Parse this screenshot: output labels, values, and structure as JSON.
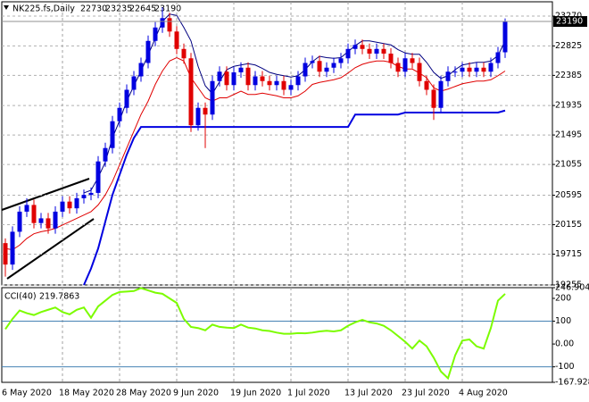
{
  "chart_data": [
    {
      "type": "candlestick",
      "title": "NK225.fs,Daily",
      "categories": [
        "6 May 2020",
        null,
        null,
        null,
        null,
        null,
        null,
        null,
        "18 May 2020",
        null,
        null,
        null,
        null,
        null,
        null,
        null,
        "28 May 2020",
        null,
        null,
        null,
        null,
        null,
        null,
        null,
        "9 Jun 2020",
        null,
        null,
        null,
        null,
        null,
        null,
        null,
        "19 Jun 2020",
        null,
        null,
        null,
        null,
        null,
        null,
        null,
        "1 Jul 2020",
        null,
        null,
        null,
        null,
        null,
        null,
        null,
        "13 Jul 2020",
        null,
        null,
        null,
        null,
        null,
        null,
        null,
        "23 Jul 2020",
        null,
        null,
        null,
        null,
        null,
        null,
        null,
        "4 Aug 2020",
        null,
        null,
        null,
        null,
        null,
        null
      ],
      "open": [
        19880,
        19560,
        20050,
        20350,
        20450,
        20180,
        20250,
        20100,
        20350,
        20500,
        20400,
        20550,
        20600,
        20630,
        21100,
        21300,
        21700,
        21900,
        22170,
        22370,
        22570,
        22900,
        23100,
        23240,
        23040,
        22780,
        22640,
        21640,
        21900,
        21800,
        22300,
        22440,
        22240,
        22430,
        22500,
        22240,
        22370,
        22300,
        22240,
        22300,
        22170,
        22240,
        22370,
        22570,
        22600,
        22440,
        22500,
        22570,
        22640,
        22780,
        22840,
        22780,
        22710,
        22780,
        22710,
        22570,
        22440,
        22640,
        22570,
        22300,
        22170,
        21900,
        22300,
        22440,
        22440,
        22500,
        22440,
        22500,
        22440,
        22570,
        22730
      ],
      "high": [
        19950,
        20130,
        20430,
        20550,
        20530,
        20330,
        20330,
        20430,
        20580,
        20580,
        20630,
        20680,
        20710,
        21180,
        21380,
        21780,
        21980,
        22250,
        22450,
        22650,
        22980,
        23180,
        23400,
        23320,
        23120,
        22860,
        22720,
        21980,
        21980,
        22380,
        22520,
        22520,
        22510,
        22580,
        22580,
        22450,
        22450,
        22380,
        22380,
        22380,
        22320,
        22450,
        22650,
        22680,
        22680,
        22580,
        22650,
        22720,
        22860,
        22920,
        22920,
        22860,
        22860,
        22860,
        22790,
        22650,
        22720,
        22720,
        22650,
        22380,
        22250,
        22380,
        22520,
        22520,
        22580,
        22580,
        22580,
        22580,
        22650,
        22810,
        23235
      ],
      "low": [
        19380,
        19480,
        19970,
        20270,
        20100,
        20100,
        20020,
        20020,
        20270,
        20320,
        20320,
        20470,
        20520,
        20550,
        21020,
        21220,
        21620,
        21820,
        22090,
        22290,
        22490,
        22820,
        23020,
        22960,
        22700,
        22560,
        21540,
        21560,
        21300,
        21720,
        22220,
        22160,
        22160,
        22350,
        22160,
        22160,
        22220,
        22160,
        22160,
        22090,
        22090,
        22160,
        22290,
        22490,
        22360,
        22360,
        22420,
        22490,
        22560,
        22700,
        22700,
        22630,
        22630,
        22630,
        22490,
        22360,
        22360,
        22490,
        22220,
        22090,
        21720,
        21820,
        22220,
        22360,
        22360,
        22360,
        22360,
        22360,
        22360,
        22490,
        22645
      ],
      "close": [
        19560,
        20050,
        20350,
        20450,
        20180,
        20250,
        20100,
        20350,
        20500,
        20400,
        20550,
        20600,
        20630,
        21100,
        21300,
        21700,
        21900,
        22170,
        22370,
        22570,
        22900,
        23100,
        23240,
        23040,
        22780,
        22640,
        21640,
        21900,
        21800,
        22300,
        22440,
        22240,
        22430,
        22500,
        22240,
        22370,
        22300,
        22240,
        22300,
        22170,
        22240,
        22370,
        22570,
        22600,
        22440,
        22500,
        22570,
        22640,
        22780,
        22840,
        22780,
        22710,
        22780,
        22710,
        22570,
        22440,
        22640,
        22570,
        22300,
        22170,
        21900,
        22300,
        22440,
        22440,
        22500,
        22440,
        22500,
        22440,
        22570,
        22730,
        23190
      ],
      "up_color": "#0000e0",
      "down_color": "#e00000",
      "series": [
        {
          "color": "#0000e0",
          "width": 2,
          "values": [
            null,
            null,
            null,
            null,
            null,
            null,
            null,
            null,
            null,
            null,
            null,
            19255,
            19500,
            19800,
            20200,
            20600,
            20900,
            21200,
            21450,
            21615,
            21615,
            21615,
            21615,
            21615,
            21615,
            21615,
            21615,
            21615,
            21615,
            21615,
            21615,
            21615,
            21615,
            21615,
            21615,
            21615,
            21615,
            21615,
            21615,
            21615,
            21615,
            21615,
            21615,
            21615,
            21615,
            21615,
            21615,
            21615,
            21615,
            21800,
            21800,
            21800,
            21800,
            21800,
            21800,
            21800,
            21830,
            21830,
            21830,
            21830,
            21830,
            21830,
            21830,
            21830,
            21830,
            21830,
            21830,
            21830,
            21830,
            21830,
            21860
          ]
        },
        {
          "color": "#000080",
          "width": 1,
          "values": [
            null,
            null,
            null,
            null,
            null,
            null,
            null,
            null,
            null,
            null,
            null,
            20630,
            20670,
            20860,
            21090,
            21450,
            21710,
            22000,
            22230,
            22450,
            22690,
            22940,
            23190,
            23300,
            23280,
            23100,
            22900,
            22520,
            22230,
            22110,
            22290,
            22470,
            22520,
            22540,
            22560,
            22540,
            22490,
            22430,
            22400,
            22380,
            22360,
            22380,
            22470,
            22590,
            22670,
            22650,
            22640,
            22650,
            22740,
            22830,
            22900,
            22900,
            22880,
            22860,
            22840,
            22770,
            22720,
            22700,
            22700,
            22580,
            22430,
            22340,
            22380,
            22470,
            22540,
            22560,
            22580,
            22580,
            22600,
            22680,
            22900
          ]
        },
        {
          "color": "#e00000",
          "width": 1,
          "values": [
            19800,
            19780,
            19850,
            19950,
            20020,
            20050,
            20070,
            20100,
            20150,
            20200,
            20250,
            20300,
            20350,
            20450,
            20600,
            20800,
            21050,
            21300,
            21550,
            21800,
            22000,
            22250,
            22450,
            22600,
            22650,
            22600,
            22350,
            22200,
            22050,
            22000,
            22050,
            22050,
            22100,
            22150,
            22100,
            22100,
            22120,
            22100,
            22080,
            22050,
            22050,
            22080,
            22150,
            22250,
            22280,
            22300,
            22320,
            22350,
            22420,
            22500,
            22550,
            22580,
            22600,
            22600,
            22580,
            22520,
            22480,
            22480,
            22420,
            22350,
            22200,
            22150,
            22180,
            22220,
            22260,
            22280,
            22300,
            22300,
            22320,
            22380,
            22450
          ]
        }
      ],
      "ylim": [
        19255,
        23484
      ],
      "yticks": [
        23270,
        22825,
        22385,
        21935,
        21495,
        21055,
        20595,
        20155,
        19715,
        19255
      ],
      "grid": true
    },
    {
      "type": "line",
      "title": "CCI(40)",
      "color": "#7cfc00",
      "values": [
        65,
        110,
        147,
        135,
        127,
        140,
        150,
        160,
        140,
        130,
        150,
        160,
        115,
        165,
        190,
        215,
        228,
        230,
        232,
        245,
        235,
        225,
        220,
        200,
        180,
        110,
        75,
        70,
        60,
        85,
        75,
        72,
        70,
        85,
        72,
        68,
        60,
        57,
        50,
        45,
        45,
        48,
        47,
        50,
        55,
        58,
        55,
        60,
        80,
        95,
        106,
        95,
        90,
        80,
        60,
        35,
        10,
        -20,
        15,
        -10,
        -60,
        -120,
        -150,
        -50,
        15,
        20,
        -10,
        -20,
        70,
        190,
        219.7863
      ],
      "ylim": [
        -167.928,
        246.9048
      ],
      "yticks": [
        246.9048,
        200,
        100,
        {
          "value": 0,
          "label": "0.00"
        },
        -100,
        -167.928
      ],
      "levels": [
        100,
        -100
      ]
    }
  ]
}
